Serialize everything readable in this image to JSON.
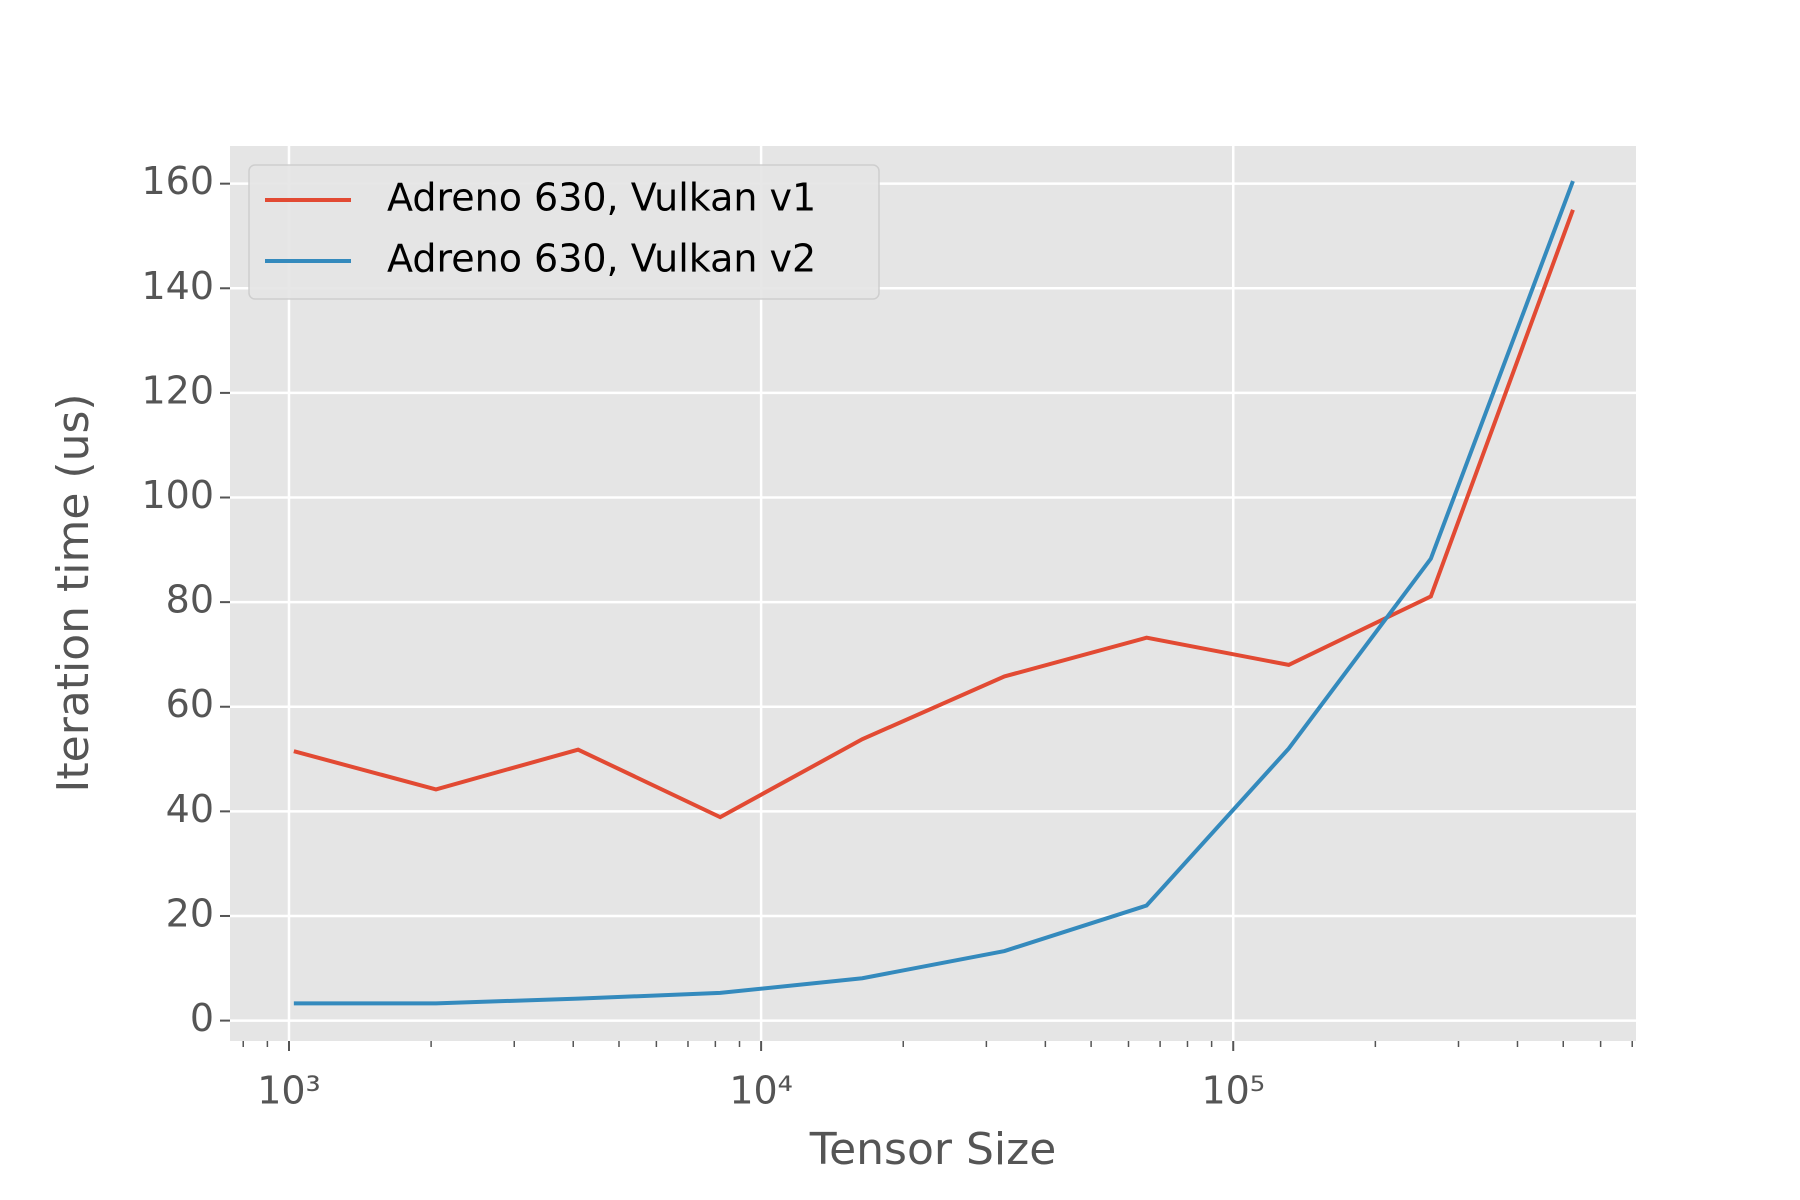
{
  "chart_data": {
    "type": "line",
    "xlabel": "Tensor Size",
    "ylabel": "Iteration time (us)",
    "x": [
      1024,
      2048,
      4096,
      8192,
      16384,
      32768,
      65536,
      131072,
      262144,
      524288
    ],
    "series": [
      {
        "name": "Adreno 630, Vulkan v1",
        "color": "#E24A33",
        "values": [
          51.5,
          44.2,
          51.8,
          38.9,
          53.8,
          65.8,
          73.2,
          68,
          81.1,
          155
        ]
      },
      {
        "name": "Adreno 630, Vulkan v2",
        "color": "#348ABD",
        "values": [
          3.3,
          3.3,
          4.2,
          5.3,
          8.1,
          13.3,
          22,
          52,
          88.3,
          160.5
        ]
      }
    ],
    "xscale": "log",
    "xlim": [
      750,
      713000
    ],
    "xticks": [
      {
        "value": 1000,
        "label": "10³"
      },
      {
        "value": 10000,
        "label": "10⁴"
      },
      {
        "value": 100000,
        "label": "10⁵"
      }
    ],
    "xminorticks": [
      800,
      900,
      2000,
      3000,
      4000,
      5000,
      6000,
      7000,
      8000,
      9000,
      20000,
      30000,
      40000,
      50000,
      60000,
      70000,
      80000,
      90000,
      200000,
      300000,
      400000,
      500000,
      600000,
      700000
    ],
    "ylim": [
      -3.9,
      167.2
    ],
    "yticks": [
      0,
      20,
      40,
      60,
      80,
      100,
      120,
      140,
      160
    ],
    "grid": true,
    "legend": "upper left"
  }
}
